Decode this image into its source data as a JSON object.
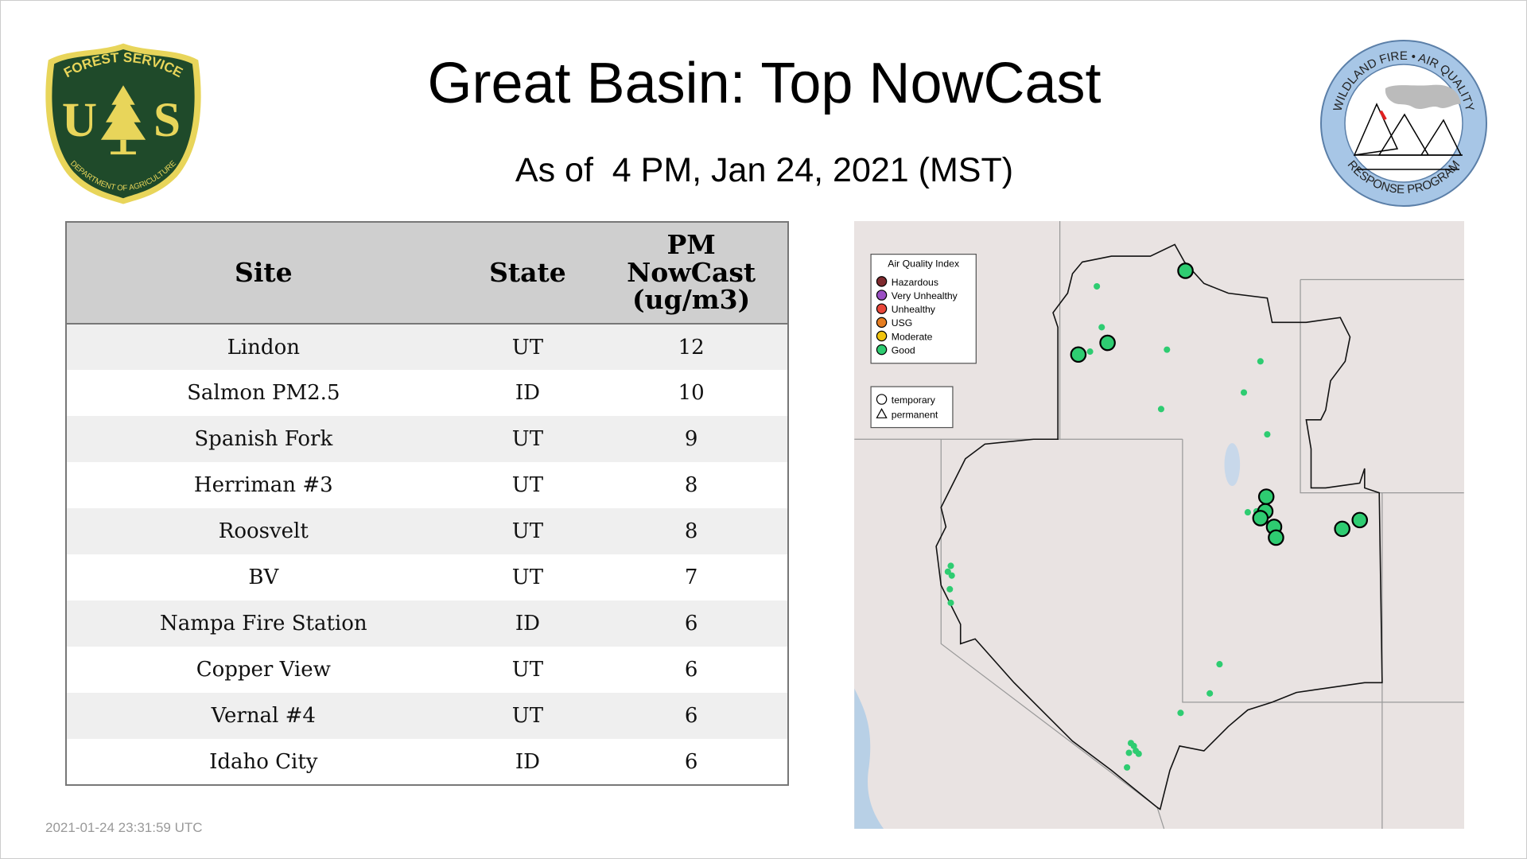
{
  "header": {
    "title": "Great Basin: Top NowCast",
    "subtitle": "As of  4 PM, Jan 24, 2021 (MST)"
  },
  "logos": {
    "usfs": {
      "top": "FOREST SERVICE",
      "left": "U",
      "right": "S",
      "bottom": "DEPARTMENT OF AGRICULTURE"
    },
    "wfaq": {
      "top": "WILDLAND FIRE • AIR QUALITY",
      "bottom": "RESPONSE PROGRAM"
    }
  },
  "table": {
    "headers": [
      "Site",
      "State",
      "PM NowCast (ug/m3)"
    ],
    "header_pm_lines": [
      "PM",
      "NowCast",
      "(ug/m3)"
    ],
    "rows": [
      [
        "Lindon",
        "UT",
        "12"
      ],
      [
        "Salmon PM2.5",
        "ID",
        "10"
      ],
      [
        "Spanish Fork",
        "UT",
        "9"
      ],
      [
        "Herriman #3",
        "UT",
        "8"
      ],
      [
        "Roosvelt",
        "UT",
        "8"
      ],
      [
        "BV",
        "UT",
        "7"
      ],
      [
        "Nampa Fire Station",
        "ID",
        "6"
      ],
      [
        "Copper View",
        "UT",
        "6"
      ],
      [
        "Vernal #4",
        "UT",
        "6"
      ],
      [
        "Idaho City",
        "ID",
        "6"
      ]
    ]
  },
  "map": {
    "legend": {
      "title": "Air Quality Index",
      "items": [
        {
          "label": "Hazardous",
          "color": "#7e2a2e"
        },
        {
          "label": "Very Unhealthy",
          "color": "#9b4fc4"
        },
        {
          "label": "Unhealthy",
          "color": "#e8473a"
        },
        {
          "label": "USG",
          "color": "#e67e22"
        },
        {
          "label": "Moderate",
          "color": "#f1c40f"
        },
        {
          "label": "Good",
          "color": "#2ecc71"
        }
      ]
    },
    "type_legend": [
      {
        "label": "temporary",
        "shape": "circle"
      },
      {
        "label": "permanent",
        "shape": "triangle"
      }
    ]
  },
  "footer": {
    "timestamp": "2021-01-24 23:31:59 UTC"
  }
}
